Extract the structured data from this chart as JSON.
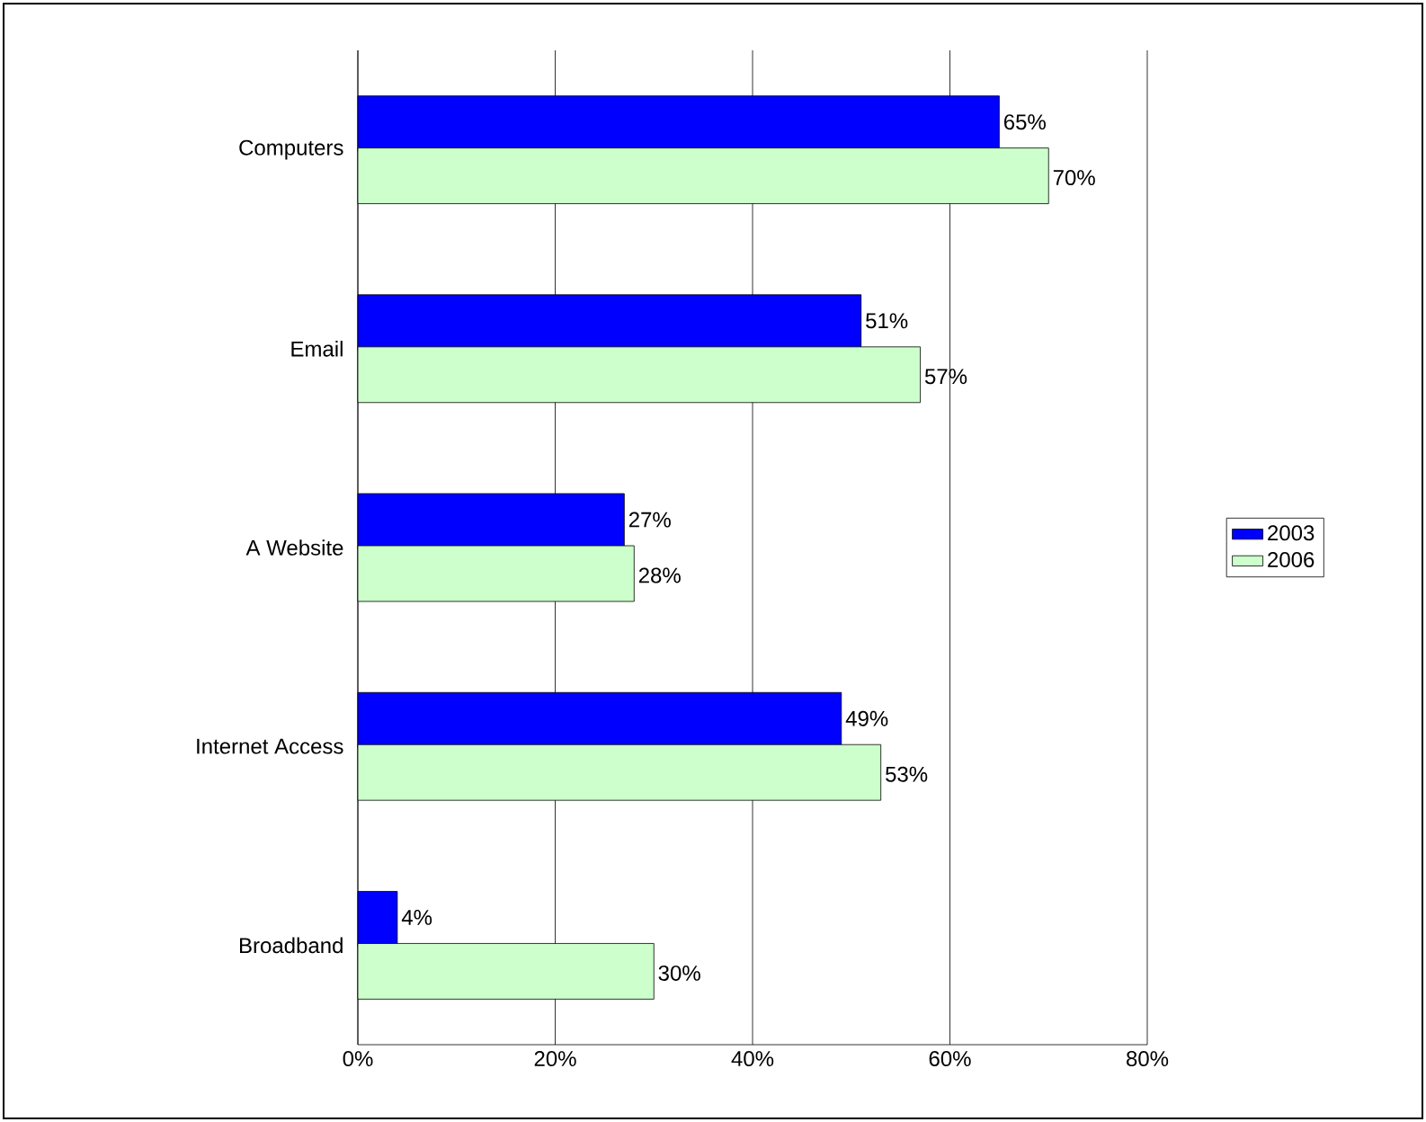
{
  "chart_data": {
    "type": "bar",
    "orientation": "horizontal",
    "categories": [
      "Computers",
      "Email",
      "A Website",
      "Internet Access",
      "Broadband"
    ],
    "series": [
      {
        "name": "2003",
        "color": "#0000ff",
        "values": [
          65,
          51,
          27,
          49,
          4
        ],
        "value_labels": [
          "65%",
          "51%",
          "27%",
          "49%",
          "4%"
        ]
      },
      {
        "name": "2006",
        "color": "#ccffcc",
        "values": [
          70,
          57,
          28,
          53,
          30
        ],
        "value_labels": [
          "70%",
          "57%",
          "28%",
          "53%",
          "30%"
        ]
      }
    ],
    "xlim": [
      0,
      80
    ],
    "xticks": [
      {
        "value": 0,
        "label": "0%"
      },
      {
        "value": 20,
        "label": "20%"
      },
      {
        "value": 40,
        "label": "40%"
      },
      {
        "value": 60,
        "label": "60%"
      },
      {
        "value": 80,
        "label": "80%"
      }
    ],
    "grid": "x",
    "legend": "right"
  }
}
